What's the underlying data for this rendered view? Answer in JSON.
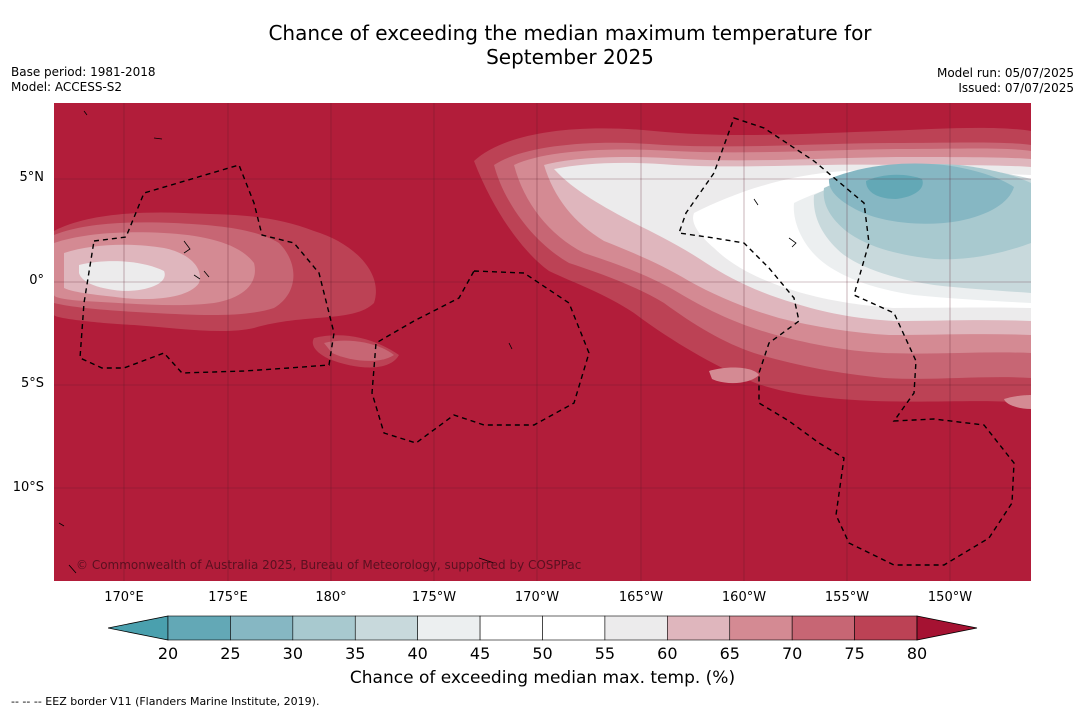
{
  "header": {
    "title_line1": "Chance of exceeding the median maximum temperature for",
    "title_line2": "September 2025",
    "base_period": "Base period: 1981-2018",
    "model": "Model: ACCESS-S2",
    "model_run": "Model run: 05/07/2025",
    "issued": "Issued: 07/07/2025"
  },
  "map": {
    "copyright": "© Commonwealth of Australia 2025, Bureau of Meteorology, supported by COSPPac",
    "lat_labels": [
      "5°N",
      "0°",
      "5°S",
      "10°S"
    ],
    "lon_labels": [
      "170°E",
      "175°E",
      "180°",
      "175°W",
      "170°W",
      "165°W",
      "160°W",
      "155°W",
      "150°W"
    ],
    "background_color": "#b21d3a"
  },
  "colorbar": {
    "ticks": [
      "20",
      "25",
      "30",
      "35",
      "40",
      "45",
      "50",
      "55",
      "60",
      "65",
      "70",
      "75",
      "80"
    ],
    "colors": [
      "#63a8b6",
      "#86b7c3",
      "#a8c9cf",
      "#c8d9dc",
      "#eceff0",
      "#ffffff",
      "#ffffff",
      "#ecebec",
      "#dfb6bd",
      "#d48a93",
      "#c76674",
      "#bc4255"
    ],
    "under_color": "#4aa0ae",
    "over_color": "#a51232",
    "title": "Chance of exceeding median max. temp. (%)"
  },
  "footer": {
    "legend_note": "--  --  -- EEZ border V11 (Flanders Marine Institute, 2019)."
  }
}
